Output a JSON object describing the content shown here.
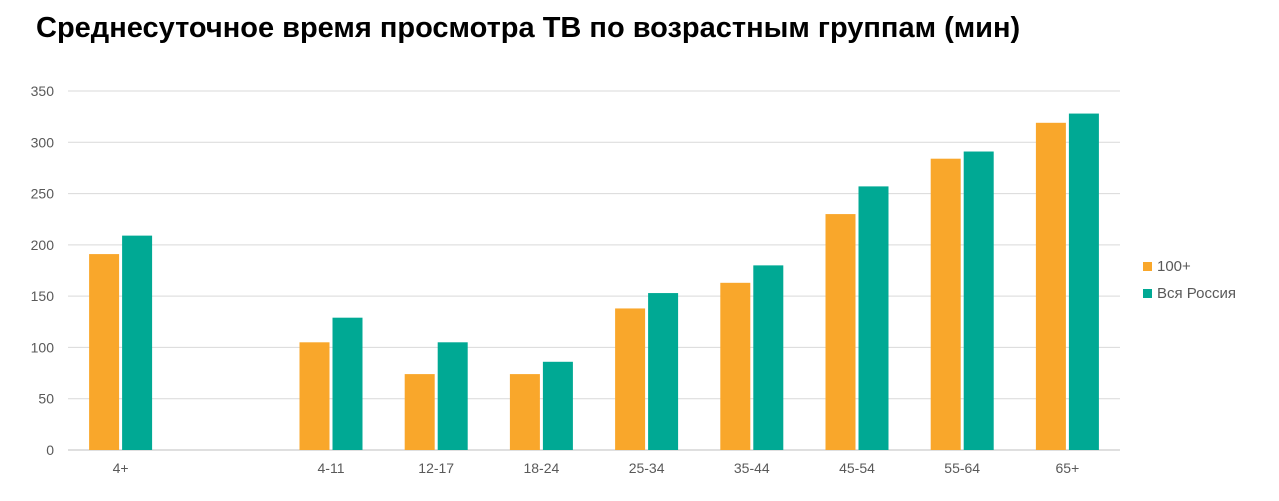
{
  "chart_data": {
    "type": "bar",
    "title": "Среднесуточное время просмотра ТВ по возрастным группам (мин)",
    "xlabel": "",
    "ylabel": "",
    "ylim": [
      0,
      350
    ],
    "yticks": [
      0,
      50,
      100,
      150,
      200,
      250,
      300,
      350
    ],
    "categories": [
      "4+",
      "",
      "4-11",
      "12-17",
      "18-24",
      "25-34",
      "35-44",
      "45-54",
      "55-64",
      "65+"
    ],
    "series": [
      {
        "name": "100+",
        "color": "#F9A72B",
        "values": [
          191,
          null,
          105,
          74,
          74,
          138,
          163,
          230,
          284,
          319
        ]
      },
      {
        "name": "Вся Россия",
        "color": "#00A994",
        "values": [
          209,
          null,
          129,
          105,
          86,
          153,
          180,
          257,
          291,
          328
        ]
      }
    ],
    "grid": true,
    "legend": "right"
  }
}
